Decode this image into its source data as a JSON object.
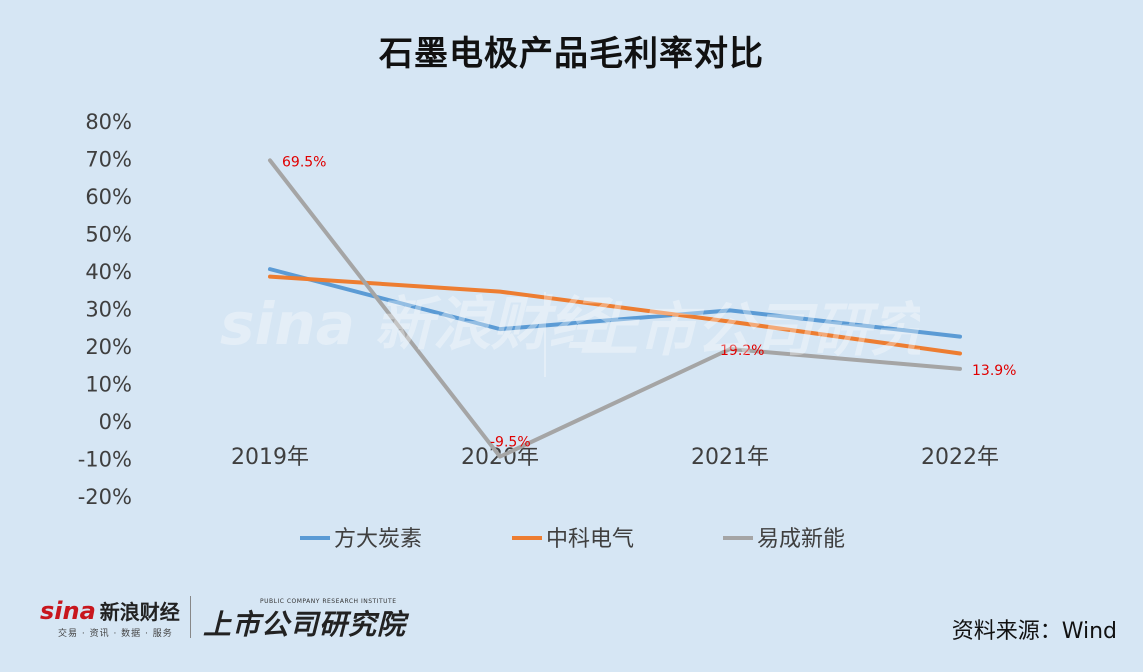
{
  "chart_data": {
    "type": "line",
    "title": "石墨电极产品毛利率对比",
    "categories": [
      "2019年",
      "2020年",
      "2021年",
      "2022年"
    ],
    "yticks": [
      "80%",
      "70%",
      "60%",
      "50%",
      "40%",
      "30%",
      "20%",
      "10%",
      "0%",
      "-10%",
      "-20%"
    ],
    "ylim": [
      -20,
      80
    ],
    "grid": false,
    "legend_position": "bottom",
    "series": [
      {
        "name": "方大炭素",
        "color": "#5b9bd5",
        "values": [
          40.5,
          24.5,
          29.5,
          22.5
        ],
        "labels": [
          "",
          "",
          "",
          ""
        ]
      },
      {
        "name": "中科电气",
        "color": "#ed7d31",
        "values": [
          38.5,
          34.5,
          26.5,
          18
        ],
        "labels": [
          "",
          "",
          "",
          ""
        ]
      },
      {
        "name": "易成新能",
        "color": "#a5a5a5",
        "values": [
          69.5,
          -9.5,
          19.2,
          13.9
        ],
        "labels": [
          "69.5%",
          "-9.5%",
          "19.2%",
          "13.9%"
        ]
      }
    ]
  },
  "footer": {
    "sina_logo": "sina",
    "sina_cn": "新浪财经",
    "sina_sub": "交易 · 资讯 · 数据 · 服务",
    "institute": "上市公司研究院",
    "institute_en": "PUBLIC COMPANY RESEARCH INSTITUTE",
    "source": "资料来源：Wind"
  },
  "colors": {
    "background": "#d6e6f4",
    "label_red": "#e00000"
  }
}
